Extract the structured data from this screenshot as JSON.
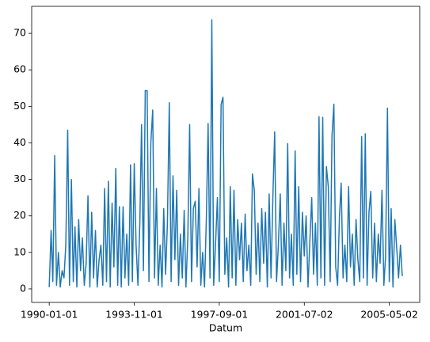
{
  "chart_data": {
    "type": "line",
    "xlabel": "Datum",
    "color": "#1f77b4",
    "x": [
      "1990-01-01",
      "1990-02-01",
      "1990-03-01",
      "1990-04-01",
      "1990-05-01",
      "1990-06-01",
      "1990-07-01",
      "1990-08-01",
      "1990-09-01",
      "1990-10-01",
      "1990-11-01",
      "1990-12-01",
      "1991-01-01",
      "1991-02-01",
      "1991-03-01",
      "1991-04-01",
      "1991-05-01",
      "1991-06-01",
      "1991-07-01",
      "1991-08-01",
      "1991-09-01",
      "1991-10-01",
      "1991-11-01",
      "1991-12-01",
      "1992-01-01",
      "1992-02-01",
      "1992-03-01",
      "1992-04-01",
      "1992-05-01",
      "1992-06-01",
      "1992-07-01",
      "1992-08-01",
      "1992-09-01",
      "1992-10-01",
      "1992-11-01",
      "1992-12-01",
      "1993-01-01",
      "1993-02-01",
      "1993-03-01",
      "1993-04-01",
      "1993-05-01",
      "1993-06-01",
      "1993-07-01",
      "1993-08-01",
      "1993-09-01",
      "1993-10-01",
      "1993-11-01",
      "1993-12-01",
      "1994-01-01",
      "1994-02-01",
      "1994-03-01",
      "1994-04-01",
      "1994-05-01",
      "1994-06-01",
      "1994-07-01",
      "1994-08-01",
      "1994-09-01",
      "1994-10-01",
      "1994-11-01",
      "1994-12-01",
      "1995-01-01",
      "1995-02-01",
      "1995-03-01",
      "1995-04-01",
      "1995-05-01",
      "1995-06-01",
      "1995-07-01",
      "1995-08-01",
      "1995-09-01",
      "1995-10-01",
      "1995-11-01",
      "1995-12-01",
      "1996-01-01",
      "1996-02-01",
      "1996-03-01",
      "1996-04-01",
      "1996-05-01",
      "1996-06-01",
      "1996-07-01",
      "1996-08-01",
      "1996-09-01",
      "1996-10-01",
      "1996-11-01",
      "1996-12-01",
      "1997-01-01",
      "1997-02-01",
      "1997-03-01",
      "1997-04-01",
      "1997-05-01",
      "1997-06-01",
      "1997-07-01",
      "1997-08-01",
      "1997-09-01",
      "1997-10-01",
      "1997-11-01",
      "1997-12-01",
      "1998-01-01",
      "1998-02-01",
      "1998-03-01",
      "1998-04-01",
      "1998-05-01",
      "1998-06-01",
      "1998-07-01",
      "1998-08-01",
      "1998-09-01",
      "1998-10-01",
      "1998-11-01",
      "1998-12-01",
      "1999-01-01",
      "1999-02-01",
      "1999-03-01",
      "1999-04-01",
      "1999-05-01",
      "1999-06-01",
      "1999-07-01",
      "1999-08-01",
      "1999-09-01",
      "1999-10-01",
      "1999-11-01",
      "1999-12-01",
      "2000-01-01",
      "2000-02-01",
      "2000-03-01",
      "2000-04-01",
      "2000-05-01",
      "2000-06-01",
      "2000-07-01",
      "2000-08-01",
      "2000-09-01",
      "2000-10-01",
      "2000-11-01",
      "2000-12-01",
      "2001-01-01",
      "2001-02-01",
      "2001-03-01",
      "2001-04-01",
      "2001-05-01",
      "2001-06-01",
      "2001-07-01",
      "2001-08-01",
      "2001-09-01",
      "2001-10-01",
      "2001-11-01",
      "2001-12-01",
      "2002-01-01",
      "2002-02-01",
      "2002-03-01",
      "2002-04-01",
      "2002-05-01",
      "2002-06-01",
      "2002-07-01",
      "2002-08-01",
      "2002-09-01",
      "2002-10-01",
      "2002-11-01",
      "2002-12-01",
      "2003-01-01",
      "2003-02-01",
      "2003-03-01",
      "2003-04-01",
      "2003-05-01",
      "2003-06-01",
      "2003-07-01",
      "2003-08-01",
      "2003-09-01",
      "2003-10-01",
      "2003-11-01",
      "2003-12-01",
      "2004-01-01",
      "2004-02-01",
      "2004-03-01",
      "2004-04-01",
      "2004-05-01",
      "2004-06-01",
      "2004-07-01",
      "2004-08-01",
      "2004-09-01",
      "2004-10-01",
      "2004-11-01",
      "2004-12-01",
      "2005-01-01",
      "2005-02-01",
      "2005-03-01",
      "2005-04-01",
      "2005-05-01",
      "2005-06-01",
      "2005-07-01",
      "2005-08-01",
      "2005-09-01",
      "2005-10-01",
      "2005-11-01",
      "2005-12-01"
    ],
    "values": [
      0.5,
      16,
      2,
      36.5,
      1,
      10,
      0.5,
      5,
      3,
      12,
      43.5,
      1,
      30,
      2,
      17,
      0.5,
      19,
      5,
      14,
      1,
      7,
      25.5,
      0.5,
      21,
      3,
      16,
      0.5,
      8,
      12,
      1,
      27.5,
      2,
      29.5,
      0.5,
      23.5,
      6,
      33,
      1,
      22.5,
      0.5,
      22.5,
      3,
      15,
      1,
      34,
      2,
      34.3,
      12,
      1,
      18,
      45,
      5,
      54.3,
      54.3,
      2,
      40,
      49,
      3,
      27.5,
      1,
      12,
      0.5,
      22,
      4,
      18,
      51,
      2,
      31,
      8,
      27,
      1,
      15,
      3,
      21.5,
      0.5,
      14,
      45,
      2,
      22,
      24,
      6,
      27.5,
      1,
      10,
      0.5,
      20,
      45.3,
      3,
      73.7,
      1,
      12,
      25,
      2,
      50.5,
      52.5,
      4,
      14,
      0.5,
      28,
      3,
      27,
      1,
      19,
      8,
      18,
      2,
      20.5,
      5,
      12,
      1,
      31.5,
      27,
      4,
      18,
      2,
      22,
      7,
      21,
      0.5,
      26,
      3,
      25.5,
      43,
      2,
      12,
      26,
      1,
      18,
      5,
      39.8,
      3,
      15,
      1,
      37.8,
      4,
      28,
      2,
      21,
      9,
      20,
      0.5,
      13,
      25,
      4,
      18,
      1,
      47.2,
      3,
      47,
      1,
      33.5,
      28,
      2,
      42,
      50.6,
      6,
      1,
      20,
      29,
      3,
      12,
      2,
      28,
      6,
      15,
      1,
      19,
      8,
      2,
      41.7,
      3,
      42.5,
      1,
      21,
      26.7,
      3,
      18,
      2,
      15,
      7,
      27,
      1,
      9,
      49.5,
      2,
      22,
      0.5,
      19,
      11,
      3,
      12,
      3.5
    ],
    "xlim": [
      "1989-03-18",
      "2006-09-14"
    ],
    "xticks": [
      "1990-01-01",
      "1993-11-01",
      "1997-09-01",
      "2001-07-02",
      "2005-05-02"
    ],
    "ylim": [
      -3.7,
      77.4
    ],
    "yticks": [
      0,
      10,
      20,
      30,
      40,
      50,
      60,
      70
    ]
  }
}
